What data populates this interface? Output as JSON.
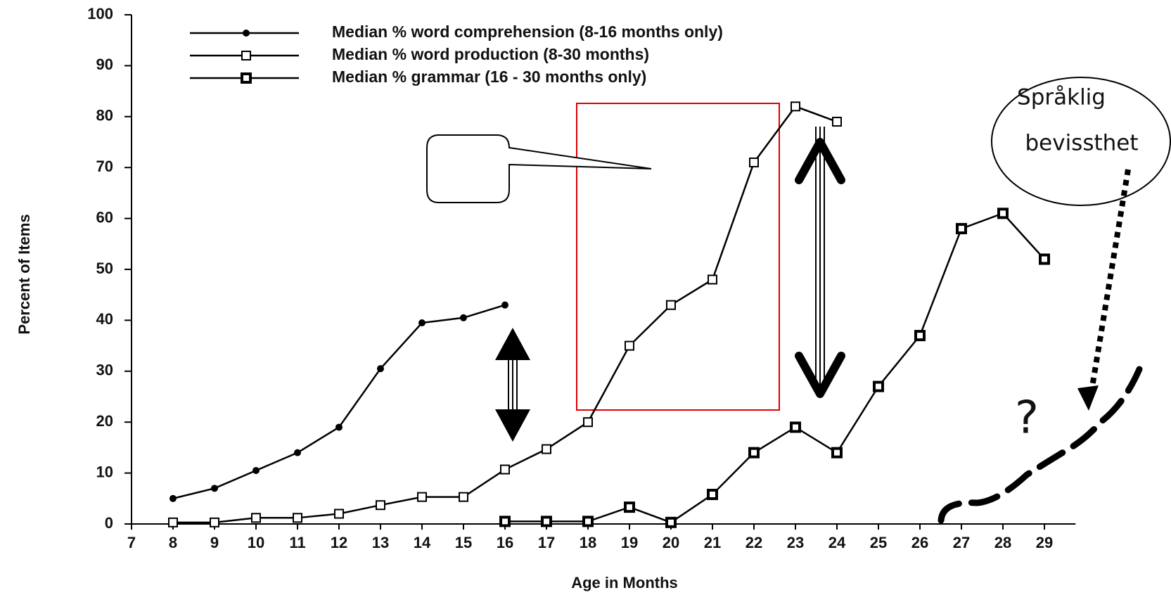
{
  "chart_data": {
    "type": "line",
    "ylabel": "Percent of Items",
    "xlabel": "Age in Months",
    "x": [
      8,
      9,
      10,
      11,
      12,
      13,
      14,
      15,
      16,
      17,
      18,
      19,
      20,
      21,
      22,
      23,
      24,
      25,
      26,
      27,
      28,
      29
    ],
    "series": [
      {
        "name": "Median % word comprehension (8-16 months only)",
        "color": "#000000",
        "marker": "circle",
        "values": [
          5,
          7,
          10.5,
          14,
          19,
          30.5,
          39.5,
          40.5,
          43,
          null,
          null,
          null,
          null,
          null,
          null,
          null,
          null,
          null,
          null,
          null,
          null,
          null
        ]
      },
      {
        "name": "Median % word production (8-30 months)",
        "color": "#000000",
        "marker": "open-square",
        "values": [
          0.3,
          0.3,
          1.2,
          1.2,
          2,
          3.7,
          5.3,
          5.3,
          10.7,
          14.7,
          20,
          35,
          43,
          48,
          71,
          82,
          79,
          null,
          null,
          null,
          null,
          null
        ]
      },
      {
        "name": "Median % grammar (16 - 30 months only)",
        "color": "#000000",
        "marker": "square",
        "values": [
          null,
          null,
          null,
          null,
          null,
          null,
          null,
          null,
          0.5,
          0.5,
          0.5,
          3.3,
          0.3,
          5.8,
          14,
          19,
          14,
          27,
          37,
          58,
          61,
          52
        ]
      }
    ],
    "xlim": [
      7,
      29.75
    ],
    "xticks": [
      7,
      8,
      9,
      10,
      11,
      12,
      13,
      14,
      15,
      16,
      17,
      18,
      19,
      20,
      21,
      22,
      23,
      24,
      25,
      26,
      27,
      28,
      29
    ],
    "ylim": [
      0,
      100
    ],
    "yticks": [
      0,
      10,
      20,
      30,
      40,
      50,
      60,
      70,
      80,
      90,
      100
    ],
    "annotations": [
      "Språklig",
      "bevissthet",
      "?"
    ]
  }
}
